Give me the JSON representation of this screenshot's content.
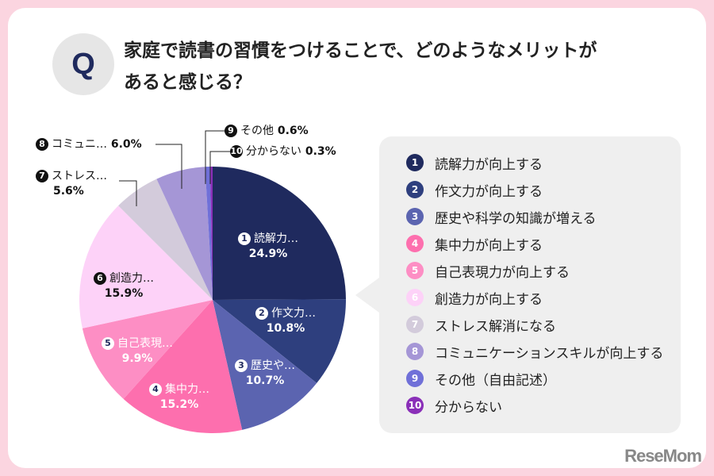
{
  "title": "家庭で読書の習慣をつけることで、どのようなメリットがあると感じる？",
  "q_badge": "Q",
  "logo": "ReseMom",
  "chart_data": {
    "type": "pie",
    "start": "top",
    "direction": "clockwise",
    "series": [
      {
        "num": "1",
        "short": "読解力…",
        "label": "読解力が向上する",
        "value": 24.9,
        "display": "24.9%",
        "color": "#1f2a5e"
      },
      {
        "num": "2",
        "short": "作文力…",
        "label": "作文力が向上する",
        "value": 10.8,
        "display": "10.8%",
        "color": "#2e3f7e"
      },
      {
        "num": "3",
        "short": "歴史や…",
        "label": "歴史や科学の知識が増える",
        "value": 10.7,
        "display": "10.7%",
        "color": "#5b64b0"
      },
      {
        "num": "4",
        "short": "集中力…",
        "label": "集中力が向上する",
        "value": 15.2,
        "display": "15.2%",
        "color": "#fd6fae"
      },
      {
        "num": "5",
        "short": "自己表現…",
        "label": "自己表現力が向上する",
        "value": 9.9,
        "display": "9.9%",
        "color": "#fd8ec4"
      },
      {
        "num": "6",
        "short": "創造力…",
        "label": "創造力が向上する",
        "value": 15.9,
        "display": "15.9%",
        "color": "#fdd2f8"
      },
      {
        "num": "7",
        "short": "ストレス…",
        "label": "ストレス解消になる",
        "value": 5.6,
        "display": "5.6%",
        "color": "#d3cbdb"
      },
      {
        "num": "8",
        "short": "コミュニ…",
        "label": "コミュニケーションスキルが向上する",
        "value": 6.0,
        "display": "6.0%",
        "color": "#a596d6"
      },
      {
        "num": "9",
        "short": "その他",
        "label": "その他（自由記述）",
        "value": 0.6,
        "display": "0.6%",
        "color": "#7070d8"
      },
      {
        "num": "10",
        "short": "分からない",
        "label": "分からない",
        "value": 0.3,
        "display": "0.3%",
        "color": "#8a2fb8"
      }
    ]
  }
}
